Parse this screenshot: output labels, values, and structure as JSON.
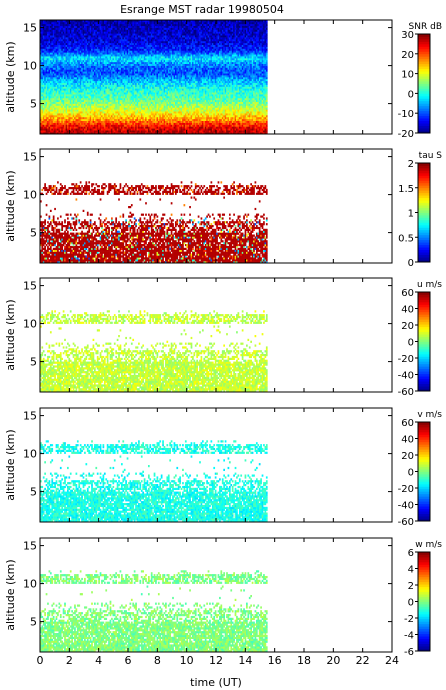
{
  "chart_data": {
    "type": "heatmap",
    "title": "Esrange MST radar 19980504",
    "xlabel": "time (UT)",
    "xlim": [
      0,
      24
    ],
    "x_ticks": [
      "0",
      "2",
      "4",
      "6",
      "8",
      "10",
      "12",
      "14",
      "16",
      "18",
      "20",
      "22",
      "24"
    ],
    "data_end_time_ut": 15.5,
    "panels": [
      {
        "id": "snr",
        "ylabel": "altitude (km)",
        "ylim": [
          1,
          16
        ],
        "y_ticks": [
          "5",
          "10",
          "15"
        ],
        "colorbar_label": "SNR dB",
        "colorbar_range": [
          -20,
          30
        ],
        "colorbar_ticks": [
          "30",
          "20",
          "10",
          "0",
          "-10",
          "-20"
        ],
        "description_profile": [
          [
            1,
            28
          ],
          [
            2,
            24
          ],
          [
            3,
            16
          ],
          [
            4,
            10
          ],
          [
            5,
            5
          ],
          [
            6,
            2
          ],
          [
            7,
            0
          ],
          [
            8,
            -4
          ],
          [
            9,
            -10
          ],
          [
            10,
            -8
          ],
          [
            11,
            -2
          ],
          [
            12,
            -12
          ],
          [
            13,
            -15
          ],
          [
            14,
            -16
          ],
          [
            15,
            -17
          ],
          [
            16,
            -18
          ]
        ]
      },
      {
        "id": "tau",
        "ylabel": "altitude (km)",
        "ylim": [
          1,
          16
        ],
        "y_ticks": [
          "5",
          "10",
          "15"
        ],
        "colorbar_label": "tau S",
        "colorbar_range": [
          0,
          2
        ],
        "colorbar_ticks": [
          "2",
          "1.5",
          "1",
          "0.5",
          "0"
        ],
        "dominant_value": 1.9
      },
      {
        "id": "u",
        "ylabel": "altitude (km)",
        "ylim": [
          1,
          16
        ],
        "y_ticks": [
          "5",
          "10",
          "15"
        ],
        "colorbar_label": "u m/s",
        "colorbar_range": [
          -60,
          60
        ],
        "colorbar_ticks": [
          "60",
          "40",
          "20",
          "0",
          "-20",
          "-40",
          "-60"
        ],
        "dominant_value": 8
      },
      {
        "id": "v",
        "ylabel": "altitude (km)",
        "ylim": [
          1,
          16
        ],
        "y_ticks": [
          "5",
          "10",
          "15"
        ],
        "colorbar_label": "v m/s",
        "colorbar_range": [
          -60,
          60
        ],
        "colorbar_ticks": [
          "60",
          "40",
          "20",
          "0",
          "-20",
          "-40",
          "-60"
        ],
        "dominant_value": -12
      },
      {
        "id": "w",
        "ylabel": "altitude (km)",
        "ylim": [
          1,
          16
        ],
        "y_ticks": [
          "5",
          "10",
          "15"
        ],
        "colorbar_label": "w m/s",
        "colorbar_range": [
          -6,
          6
        ],
        "colorbar_ticks": [
          "6",
          "4",
          "2",
          "0",
          "-2",
          "-4",
          "-6"
        ],
        "dominant_value": 0
      }
    ],
    "colormap": "jet",
    "grid": false
  }
}
